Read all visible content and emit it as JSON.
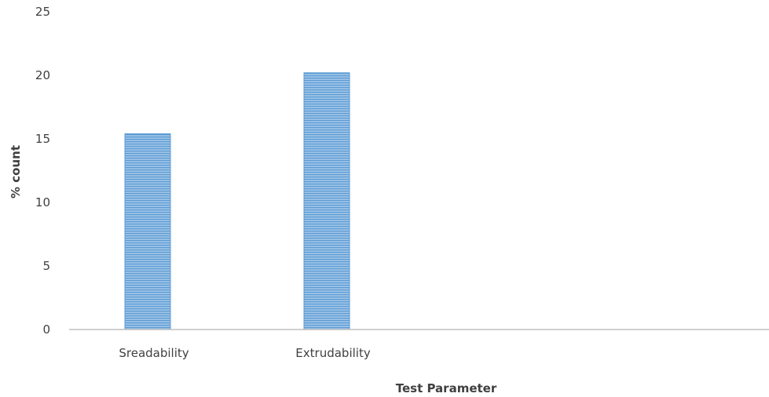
{
  "colors": {
    "bar_fill": "#9dc3e6",
    "bar_stripe": "#5b9bd5",
    "bar_edge": "#5b9bd5",
    "axis_line": "#bfbfbf",
    "text": "#404040"
  },
  "chart_data": {
    "type": "bar",
    "categories": [
      "Sreadability",
      "Extrudability"
    ],
    "values": [
      15.4,
      20.2
    ],
    "title": "",
    "xlabel": "Test Parameter",
    "ylabel": "% count",
    "ylim": [
      0,
      25
    ],
    "yticks": [
      "0",
      "5",
      "10",
      "15",
      "20",
      "25"
    ],
    "grid": false,
    "legend": "none",
    "bar_pattern": "horizontal-stripes"
  }
}
